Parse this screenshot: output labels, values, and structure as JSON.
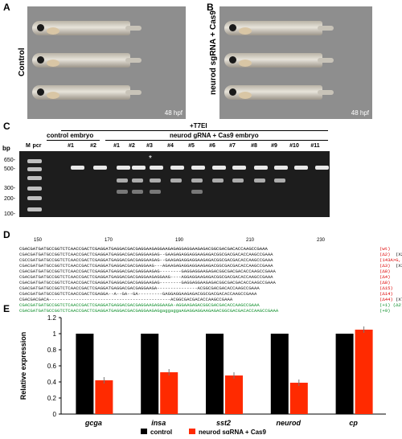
{
  "panels": {
    "a": "A",
    "b": "B",
    "c": "C",
    "d": "D",
    "e": "E"
  },
  "panel_a": {
    "label": "Control",
    "time": "48 hpf"
  },
  "panel_b": {
    "label": "neurod sgRNA + Cas9",
    "time": "48 hpf"
  },
  "panel_c": {
    "bp": "bp",
    "marker": "M",
    "t7ei": "+T7EI",
    "control_group": "control embryo",
    "neurod_group": "neurod gRNA + Cas9 embryo",
    "lanes": [
      "pcr",
      "#1",
      "#2",
      "#1",
      "#2",
      "#3",
      "#4",
      "#5",
      "#6",
      "#7",
      "#8",
      "#9",
      "#10",
      "#11"
    ],
    "star": "*",
    "sizes": [
      "650-",
      "500-",
      "300-",
      "200-",
      "100-"
    ]
  },
  "panel_d": {
    "positions": [
      "150",
      "170",
      "190",
      "210",
      "230"
    ],
    "rows": [
      {
        "seq": "CGACGATGATGCCGGTCTCAACCGACTCGAGGATGAGGACGACGAGGAAGAGGAAGAGAGGAGGAAGAGACGGCGACGACACCAAGCCGAAA",
        "note": "(wt)",
        "x": ""
      },
      {
        "seq": "CGACGATGATGCCGGTCTCAACCGACTCGAGGATGAGGACGACGAGGAAGAG--GAAGAGAGGAGGAAGAGACGGCGACGACACCAAGCCGAAA",
        "note": "(Δ2)",
        "x": "(X2)"
      },
      {
        "seq": "CGCCGATGATGCCGGTCTCAACCGACTCGAGGATGAGGACGACGAGGAAGAG--GAAGAGAGGAGGAAGAGACGGCGACGACACCAAGCCGAAA",
        "note": "(143A>G, Δ2)",
        "x": ""
      },
      {
        "seq": "CGACGATGATGCCGGTCTCAACCGACTCGAGGATGAGGACGACGAGGAAG---AGAAGAGAGGAGGAAGAGACGGCGACGACACCAAGCCGAAA",
        "note": "(Δ3)",
        "x": "(X3)"
      },
      {
        "seq": "CGACGATGATGCCGGTCTCAACCGACTCGAGGATGAGGACGACGAGGAAGAG--------GAGGAGGAAGAGACGGCGACGACACCAAGCCGAAA",
        "note": "(Δ8)",
        "x": ""
      },
      {
        "seq": "CGACGATGATGCCGGTCTCAACCGACTCGAGGATGAGGACGACGAGGAAGAGGAAG----AGGAGGAAGAGACGGCGACGACACCAAGCCGAAA",
        "note": "(Δ4)",
        "x": ""
      },
      {
        "seq": "CGACGATGATGCCGGTCTCAACCGACTCGAGGATGAGGACGACGAGGAAGAG--------GAGGAGGAAGAGACGGCGACGACACCAAGCCGAAA",
        "note": "(Δ8)",
        "x": ""
      },
      {
        "seq": "CGACGATGATGCCGGTCTCAACCGACTCGAGGATGAGGACGACGAGGAAGA---------------ACGGCGACGACACCAAGCCGAAA",
        "note": "(Δ15)",
        "x": ""
      },
      {
        "seq": "CGACGATGATGCCGGTCTCAACCGACTCGAGGA--A--GA--GA---------GAGGAGGAAGAGACGGCGACGACACCAAGCCGAAA",
        "note": "(Δ14)",
        "x": ""
      },
      {
        "seq": "CGACGACGACA---------------------------------------------ACGGCGACGACACCAAGCCGAAA",
        "note": "(Δ44)",
        "x": "(X7)"
      },
      {
        "seq": "CGACGATGATGCCGGTCTCAACCGACTCGAGGATGAGGACGACGAGGAAGAGGAAGA-AGGAAGAGACGGCGACGACACCAAGCCGAAA",
        "note": "(+1) (Δ2)",
        "x": ""
      },
      {
        "seq": "CGACGATGATGCCGGTCTCAACCGACTCGAGGATGAGGACGACGAGGAAGAGgaggaggaAGAGGAGGAAGAGACGGCGACGACACCAAGCCGAAA",
        "note": "(+9)",
        "x": ""
      }
    ]
  },
  "chart_data": {
    "type": "bar",
    "categories": [
      "gcga",
      "insa",
      "sst2",
      "neurod",
      "cp"
    ],
    "series": [
      {
        "name": "control",
        "values": [
          1.0,
          1.0,
          1.0,
          1.0,
          1.0
        ]
      },
      {
        "name": "neurod sgRNA + Cas9",
        "values": [
          0.42,
          0.52,
          0.48,
          0.39,
          1.05
        ]
      }
    ],
    "ylabel": "Relative expression",
    "ylim": [
      0,
      1.2
    ],
    "yticks": [
      "0",
      "0.2",
      "0.4",
      "0.6",
      "0.8",
      "1",
      "1.2"
    ],
    "colors": {
      "control": "#000000",
      "neurod sgRNA + Cas9": "#ff2a00",
      "error": "#777777"
    },
    "legend": [
      "control",
      "neurod sgRNA + Cas9"
    ]
  }
}
